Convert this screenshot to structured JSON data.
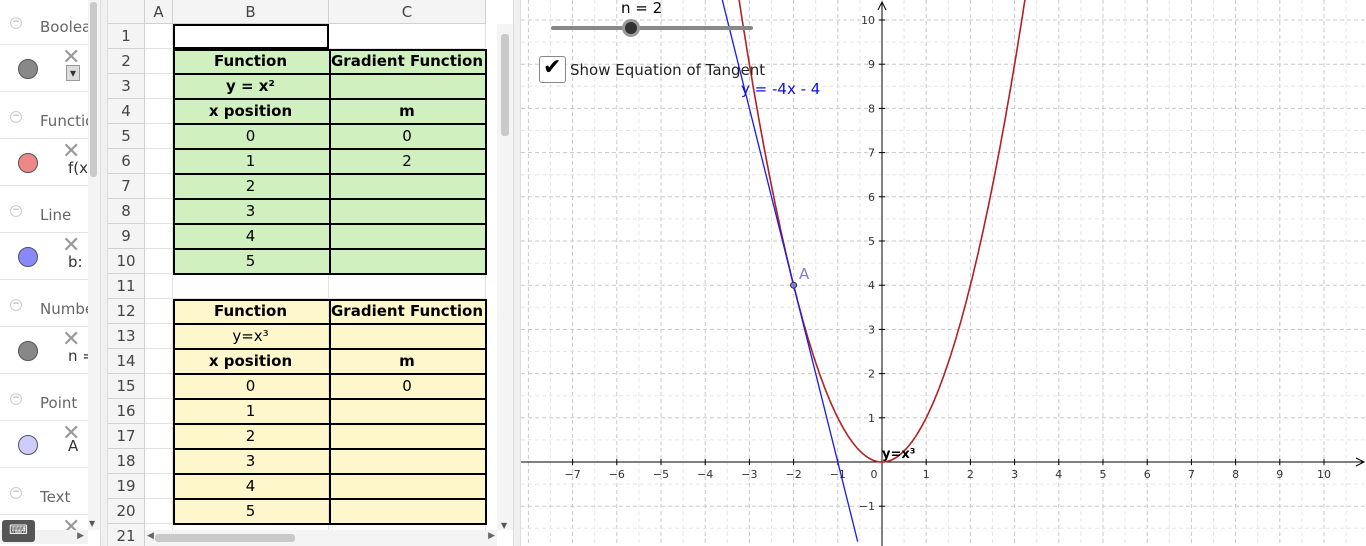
{
  "algebra": {
    "categories": [
      {
        "label": "Booleans",
        "toggle": "−"
      },
      {
        "label": "Functions",
        "toggle": "−"
      },
      {
        "label": "Line",
        "toggle": "−"
      },
      {
        "label": "Numbers",
        "toggle": "−"
      },
      {
        "label": "Point",
        "toggle": "−"
      },
      {
        "label": "Text",
        "toggle": "−"
      }
    ],
    "objects": [
      {
        "color": "#888888",
        "text": ""
      },
      {
        "color": "#ee8888",
        "text": "f(x"
      },
      {
        "color": "#8888ff",
        "text": "b:"
      },
      {
        "color": "#888888",
        "text": "n ="
      },
      {
        "color": "#ccccff",
        "text": "A"
      },
      {
        "color": "#888888",
        "text": ""
      }
    ],
    "close_glyph": "✕",
    "keyboard_icon": "⌨"
  },
  "spreadsheet": {
    "columns": [
      "A",
      "B",
      "C"
    ],
    "rows": [
      "1",
      "2",
      "3",
      "4",
      "5",
      "6",
      "7",
      "8",
      "9",
      "10",
      "11",
      "12",
      "13",
      "14",
      "15",
      "16",
      "17",
      "18",
      "19",
      "20",
      "21"
    ],
    "table1": {
      "header": [
        "Function",
        "Gradient Function"
      ],
      "function": "y = x²",
      "subheader": [
        "x position",
        "m"
      ],
      "x": [
        "0",
        "1",
        "2",
        "3",
        "4",
        "5"
      ],
      "m": [
        "0",
        "2",
        "",
        "",
        "",
        ""
      ]
    },
    "table2": {
      "header": [
        "Function",
        "Gradient Function"
      ],
      "function": "y=x³",
      "subheader": [
        "x position",
        "m"
      ],
      "x": [
        "0",
        "1",
        "2",
        "3",
        "4",
        "5"
      ],
      "m": [
        "0",
        "",
        "",
        "",
        "",
        ""
      ]
    }
  },
  "graphics": {
    "slider_label": "n = 2",
    "slider_value": 2,
    "checkbox_label": "Show Equation of Tangent",
    "checkbox_checked": true,
    "tangent_equation": "y = -4x - 4",
    "point_label": "A",
    "curve_label": "y=x³",
    "x_ticks": [
      "−7",
      "−6",
      "−5",
      "−4",
      "−3",
      "−2",
      "−1",
      "0",
      "1",
      "2",
      "3",
      "4",
      "5",
      "6",
      "7",
      "8",
      "9",
      "10"
    ],
    "y_ticks": [
      "−1",
      "1",
      "2",
      "3",
      "4",
      "5",
      "6",
      "7",
      "8",
      "9",
      "10"
    ],
    "curve_color": "#b22222",
    "tangent_color": "#1a1aee",
    "point_color": "#7b7bdc"
  }
}
